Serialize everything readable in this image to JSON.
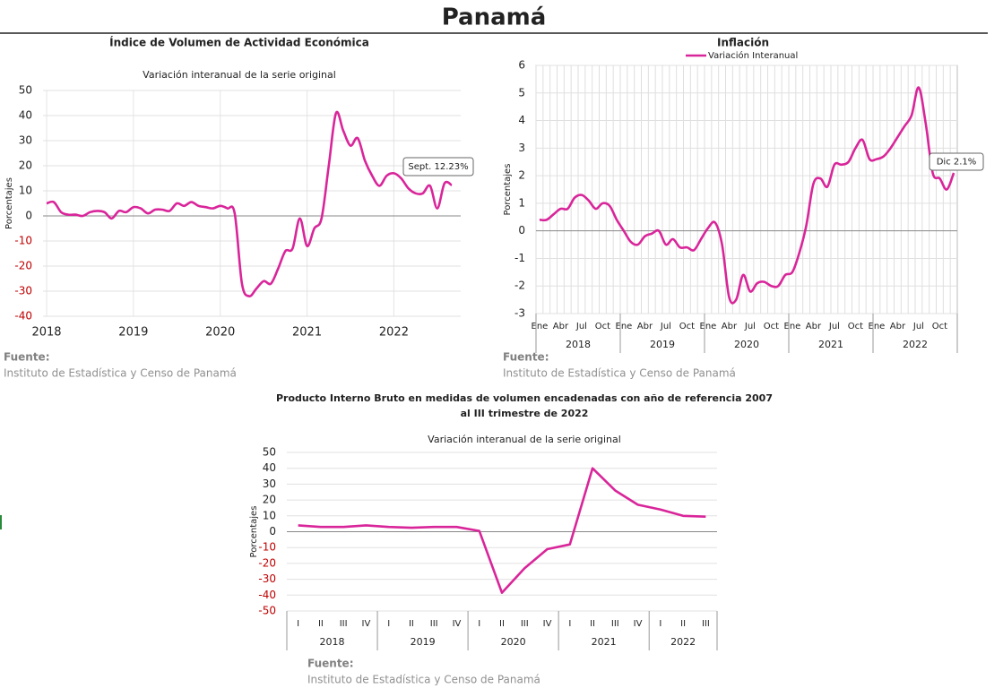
{
  "page_title": "Panamá",
  "chart_data": [
    {
      "type": "line",
      "title": [
        "Índice de Volumen de  Actividad Económica"
      ],
      "subtitle": "Variación interanual de la serie original",
      "y_label": "Porcentajes",
      "categories": [
        "2018",
        null,
        null,
        null,
        null,
        null,
        null,
        null,
        null,
        null,
        null,
        null,
        "2019",
        null,
        null,
        null,
        null,
        null,
        null,
        null,
        null,
        null,
        null,
        null,
        "2020",
        null,
        null,
        null,
        null,
        null,
        null,
        null,
        null,
        null,
        null,
        null,
        "2021",
        null,
        null,
        null,
        null,
        null,
        null,
        null,
        null,
        null,
        null,
        null,
        "2022",
        null,
        null,
        null,
        null,
        null,
        null,
        null,
        null
      ],
      "series": [
        {
          "name": null,
          "color": "#d9259a",
          "values": [
            5,
            5.5,
            1.5,
            0.5,
            0.5,
            0,
            1.5,
            2,
            1.5,
            -1,
            2,
            1.5,
            3.5,
            3,
            1,
            2.5,
            2.5,
            2,
            5,
            4,
            5.5,
            4,
            3.5,
            3,
            4,
            3,
            1,
            -27,
            -32,
            -29,
            -26,
            -27,
            -21,
            -14,
            -13,
            -1,
            -12,
            -5,
            -1,
            20,
            41,
            34,
            28,
            31,
            22,
            16,
            12,
            16,
            17,
            15,
            11,
            9,
            9,
            12,
            3,
            13,
            12.23
          ]
        }
      ],
      "ylim": [
        -40,
        50
      ],
      "yticks": [
        -40,
        -30,
        -20,
        -10,
        0,
        10,
        20,
        30,
        40,
        50
      ],
      "grid": true,
      "grid_x": true,
      "smooth": true,
      "negative_tick_color": "#c00000",
      "annotation": "Sept. 12.23%",
      "source_label": "Fuente:",
      "source": "Instituto de Estadística y Censo de Panamá"
    },
    {
      "type": "line",
      "title": [
        "Inflación"
      ],
      "categories": [
        "Ene",
        null,
        null,
        "Abr",
        null,
        null,
        "Jul",
        null,
        null,
        "Oct",
        null,
        null,
        "Ene",
        null,
        null,
        "Abr",
        null,
        null,
        "Jul",
        null,
        null,
        "Oct",
        null,
        null,
        "Ene",
        null,
        null,
        "Abr",
        null,
        null,
        "Jul",
        null,
        null,
        "Oct",
        null,
        null,
        "Ene",
        null,
        null,
        "Abr",
        null,
        null,
        "Jul",
        null,
        null,
        "Oct",
        null,
        null,
        "Ene",
        null,
        null,
        "Abr",
        null,
        null,
        "Jul",
        null,
        null,
        "Oct",
        null,
        null
      ],
      "years": [
        "2018",
        "2019",
        "2020",
        "2021",
        "2022"
      ],
      "y_label": "Porcentajes",
      "series": [
        {
          "name": "Variación Interanual",
          "color": "#d9259a",
          "values": [
            0.4,
            0.4,
            0.6,
            0.8,
            0.8,
            1.2,
            1.3,
            1.1,
            0.8,
            1.0,
            0.9,
            0.4,
            0.0,
            -0.4,
            -0.5,
            -0.2,
            -0.1,
            0.0,
            -0.5,
            -0.3,
            -0.6,
            -0.6,
            -0.7,
            -0.3,
            0.1,
            0.3,
            -0.5,
            -2.4,
            -2.5,
            -1.6,
            -2.2,
            -1.9,
            -1.85,
            -2.0,
            -2.0,
            -1.6,
            -1.5,
            -0.8,
            0.2,
            1.7,
            1.9,
            1.6,
            2.4,
            2.4,
            2.5,
            3.0,
            3.3,
            2.6,
            2.6,
            2.7,
            3.0,
            3.4,
            3.8,
            4.2,
            5.2,
            3.9,
            2.1,
            1.9,
            1.5,
            2.1
          ]
        }
      ],
      "ylim": [
        -3,
        6
      ],
      "yticks": [
        -3,
        -2,
        -1,
        0,
        1,
        2,
        3,
        4,
        5,
        6
      ],
      "grid": true,
      "grid_x": true,
      "smooth": true,
      "annotation": "Dic 2.1%",
      "source_label": "Fuente:",
      "source": "Instituto de Estadística y Censo de Panamá"
    },
    {
      "type": "line",
      "title": [
        "Producto Interno Bruto en medidas de volumen encadenadas con año de referencia 2007",
        "al III trimestre de 2022"
      ],
      "subtitle": "Variación interanual de la serie original",
      "y_label": "Porcentajes",
      "categories": [
        "I",
        "II",
        "III",
        "IV",
        "I",
        "II",
        "III",
        "IV",
        "I",
        "II",
        "III",
        "IV",
        "I",
        "II",
        "III",
        "IV",
        "I",
        "II",
        "III"
      ],
      "years": [
        "2018",
        "2019",
        "2020",
        "2021",
        "2022"
      ],
      "series": [
        {
          "name": null,
          "color": "#d9259a",
          "values": [
            4,
            3,
            3,
            4,
            3,
            2.5,
            3,
            3,
            0.5,
            -38.5,
            -23,
            -11,
            -8,
            40,
            26,
            17,
            14,
            10,
            9.5
          ]
        }
      ],
      "ylim": [
        -50,
        50
      ],
      "yticks": [
        -50,
        -40,
        -30,
        -20,
        -10,
        0,
        10,
        20,
        30,
        40,
        50
      ],
      "grid": true,
      "grid_x": false,
      "smooth": false,
      "negative_tick_color": "#c00000",
      "source_label": "Fuente:",
      "source": "Instituto de Estadística y Censo de Panamá"
    }
  ]
}
